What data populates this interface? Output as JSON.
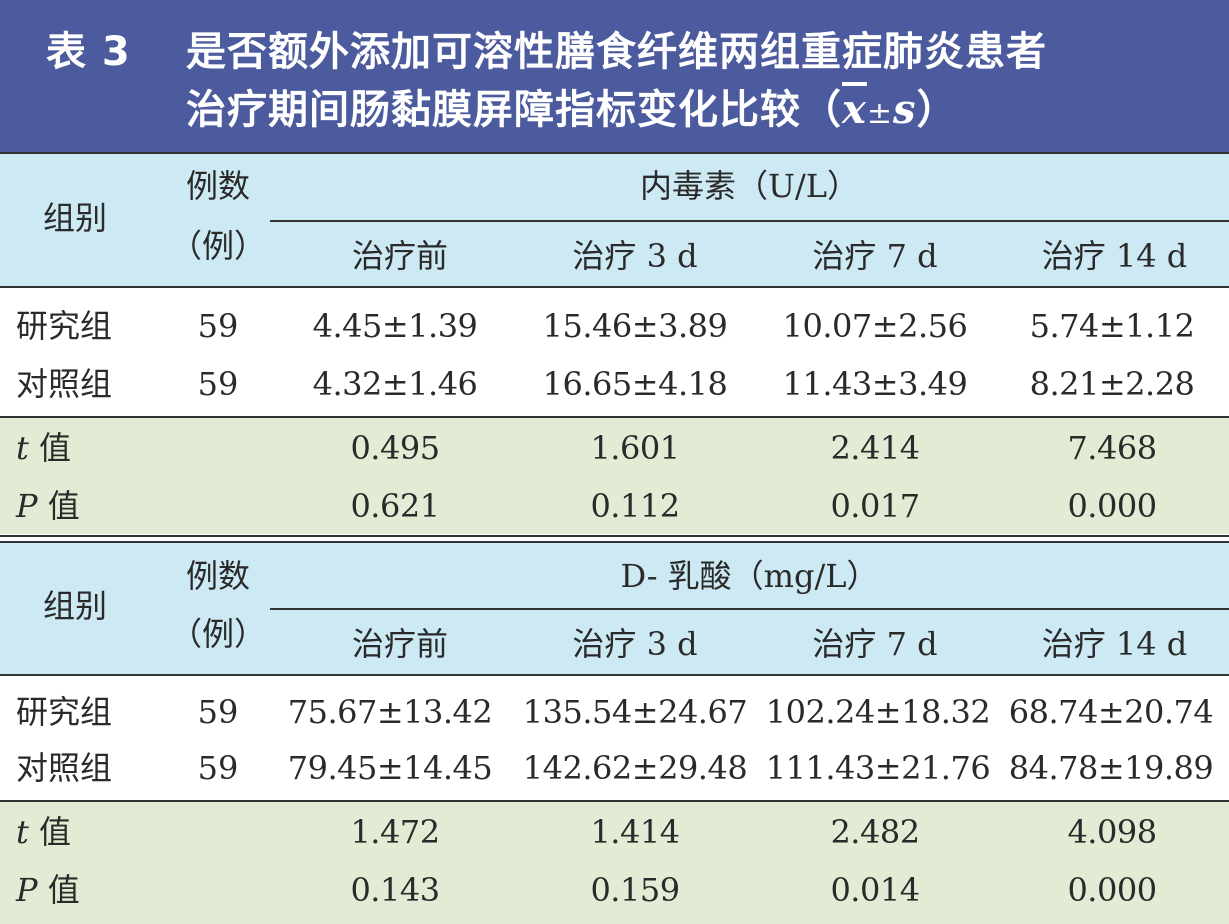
{
  "title": {
    "table_label": "表 3",
    "line1": "是否额外添加可溶性膳食纤维两组重症肺炎患者",
    "line2": "治疗期间肠黏膜屏障指标变化比较（",
    "x": "x",
    "pm": "±",
    "s": "s",
    "close": "）"
  },
  "colors": {
    "title_bg": "#4c5a9e",
    "header_bg": "#cde9f4",
    "stat_bg": "#e2ecd5"
  },
  "sections": [
    {
      "group_header": "组别",
      "count_header_1": "例数",
      "count_header_2": "（例）",
      "indicator": "内毒素（U/L）",
      "time_points": [
        "治疗前",
        "治疗 3 d",
        "治疗 7 d",
        "治疗 14 d"
      ],
      "rows": [
        {
          "group": "研究组",
          "n": "59",
          "values": [
            "4.45±1.39",
            "15.46±3.89",
            "10.07±2.56",
            "5.74±1.12"
          ]
        },
        {
          "group": "对照组",
          "n": "59",
          "values": [
            "4.32±1.46",
            "16.65±4.18",
            "11.43±3.49",
            "8.21±2.28"
          ]
        }
      ],
      "t_label_var": "t",
      "t_label_suffix": " 值",
      "t_values": [
        "0.495",
        "1.601",
        "2.414",
        "7.468"
      ],
      "p_label_var": "P",
      "p_label_suffix": " 值",
      "p_values": [
        "0.621",
        "0.112",
        "0.017",
        "0.000"
      ]
    },
    {
      "group_header": "组别",
      "count_header_1": "例数",
      "count_header_2": "（例）",
      "indicator": "D- 乳酸（mg/L）",
      "time_points": [
        "治疗前",
        "治疗 3 d",
        "治疗 7 d",
        "治疗 14 d"
      ],
      "rows": [
        {
          "group": "研究组",
          "n": "59",
          "values": [
            "75.67±13.42",
            "135.54±24.67",
            "102.24±18.32",
            "68.74±20.74"
          ]
        },
        {
          "group": "对照组",
          "n": "59",
          "values": [
            "79.45±14.45",
            "142.62±29.48",
            "111.43±21.76",
            "84.78±19.89"
          ]
        }
      ],
      "t_label_var": "t",
      "t_label_suffix": " 值",
      "t_values": [
        "1.472",
        "1.414",
        "2.482",
        "4.098"
      ],
      "p_label_var": "P",
      "p_label_suffix": " 值",
      "p_values": [
        "0.143",
        "0.159",
        "0.014",
        "0.000"
      ]
    }
  ]
}
